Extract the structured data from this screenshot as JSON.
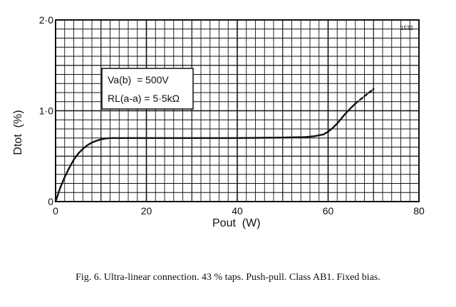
{
  "figure_ref": "1532",
  "caption": "Fig. 6.   Ultra-linear connection. 43 % taps. Push-pull. Class AB1. Fixed bias.",
  "annotation": {
    "line1": "Va(b)  = 500V",
    "line2": "RL(a-a) = 5·5kΩ"
  },
  "chart_data": {
    "type": "line",
    "title": "",
    "xlabel": "Pout  (W)",
    "ylabel": "Dtot  (%)",
    "xlim": [
      0,
      80
    ],
    "ylim": [
      0,
      2.0
    ],
    "x_ticks": [
      0,
      20,
      40,
      60,
      80
    ],
    "x_tick_labels": [
      "0",
      "20",
      "40",
      "60",
      "80"
    ],
    "y_ticks": [
      0,
      1.0,
      2.0
    ],
    "y_tick_labels": [
      "0",
      "1·0",
      "2·0"
    ],
    "grid": true,
    "series": [
      {
        "style": "solid",
        "x": [
          0,
          1,
          2,
          3,
          4,
          5,
          6,
          7,
          8,
          9,
          10,
          11,
          12,
          14,
          16,
          20,
          30,
          40,
          50,
          55,
          57,
          59,
          60,
          61,
          62,
          63,
          64,
          65,
          66
        ],
        "y": [
          0,
          0.15,
          0.27,
          0.37,
          0.46,
          0.53,
          0.58,
          0.62,
          0.65,
          0.67,
          0.685,
          0.695,
          0.7,
          0.7,
          0.7,
          0.7,
          0.7,
          0.7,
          0.705,
          0.71,
          0.72,
          0.74,
          0.77,
          0.81,
          0.86,
          0.92,
          0.98,
          1.03,
          1.08
        ]
      },
      {
        "style": "dashed",
        "x": [
          66,
          67,
          68,
          69,
          70
        ],
        "y": [
          1.08,
          1.12,
          1.16,
          1.2,
          1.24
        ]
      }
    ]
  }
}
